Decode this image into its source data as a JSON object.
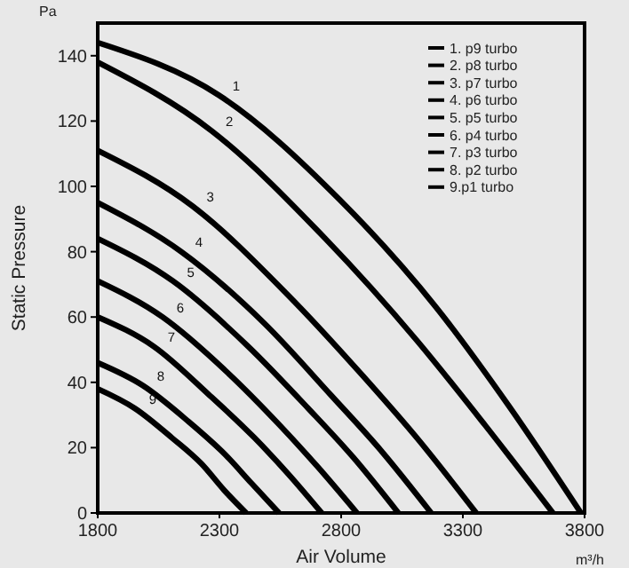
{
  "chart_data": {
    "type": "line",
    "xlabel": "Air Volume",
    "ylabel": "Static Pressure",
    "xlim": [
      1800,
      3800
    ],
    "xticks": [
      1800,
      2300,
      2800,
      3300,
      3800
    ],
    "ylim": [
      0,
      150
    ],
    "yticks": [
      0,
      20,
      40,
      60,
      80,
      100,
      120,
      140
    ],
    "grid": false,
    "legend": "top right",
    "marker": "none",
    "line_style": "solid",
    "series": [
      {
        "name": "1. p9 turbo",
        "color": "#000000",
        "x": [
          1800,
          2296,
          2793,
          3190,
          3487,
          3785
        ],
        "values": [
          144,
          128,
          96,
          63,
          33,
          0
        ]
      },
      {
        "name": "2. p8 turbo",
        "color": "#000000",
        "x": [
          1800,
          2268,
          2735,
          3109,
          3390,
          3670
        ],
        "values": [
          138,
          117,
          84,
          53,
          27,
          0
        ]
      },
      {
        "name": "3. p7 turbo",
        "color": "#000000",
        "x": [
          1800,
          2189,
          2578,
          2889,
          3122,
          3355
        ],
        "values": [
          111,
          94,
          67,
          42,
          22,
          0
        ]
      },
      {
        "name": "4. p6 turbo",
        "color": "#000000",
        "x": [
          1800,
          2143,
          2485,
          2759,
          2965,
          3170
        ],
        "values": [
          95,
          80,
          58,
          36,
          19,
          0
        ]
      },
      {
        "name": "5. p5 turbo",
        "color": "#000000",
        "x": [
          1800,
          2109,
          2418,
          2665,
          2850,
          3035
        ],
        "values": [
          84,
          71,
          51,
          32,
          17,
          0
        ]
      },
      {
        "name": "6. p4 turbo",
        "color": "#000000",
        "x": [
          1800,
          2066,
          2333,
          2546,
          2705,
          2865
        ],
        "values": [
          71,
          60,
          43,
          27,
          14,
          0
        ]
      },
      {
        "name": "7. p3 turbo",
        "color": "#000000",
        "x": [
          1800,
          2030,
          2260,
          2444,
          2582,
          2720
        ],
        "values": [
          60,
          51,
          36,
          23,
          12,
          0
        ]
      },
      {
        "name": "8. p2 turbo",
        "color": "#000000",
        "x": [
          1800,
          1986,
          2173,
          2322,
          2433,
          2545
        ],
        "values": [
          46,
          39,
          28,
          18,
          9,
          0
        ]
      },
      {
        "name": "9.p1 turbo",
        "color": "#000000",
        "x": [
          1800,
          1953,
          2105,
          2227,
          2319,
          2410
        ],
        "values": [
          38,
          32,
          23,
          15,
          7,
          0
        ]
      }
    ],
    "annotations": [
      "Pa",
      "m³/h",
      "1",
      "2",
      "3",
      "4",
      "5",
      "6",
      "7",
      "8",
      "9"
    ]
  }
}
